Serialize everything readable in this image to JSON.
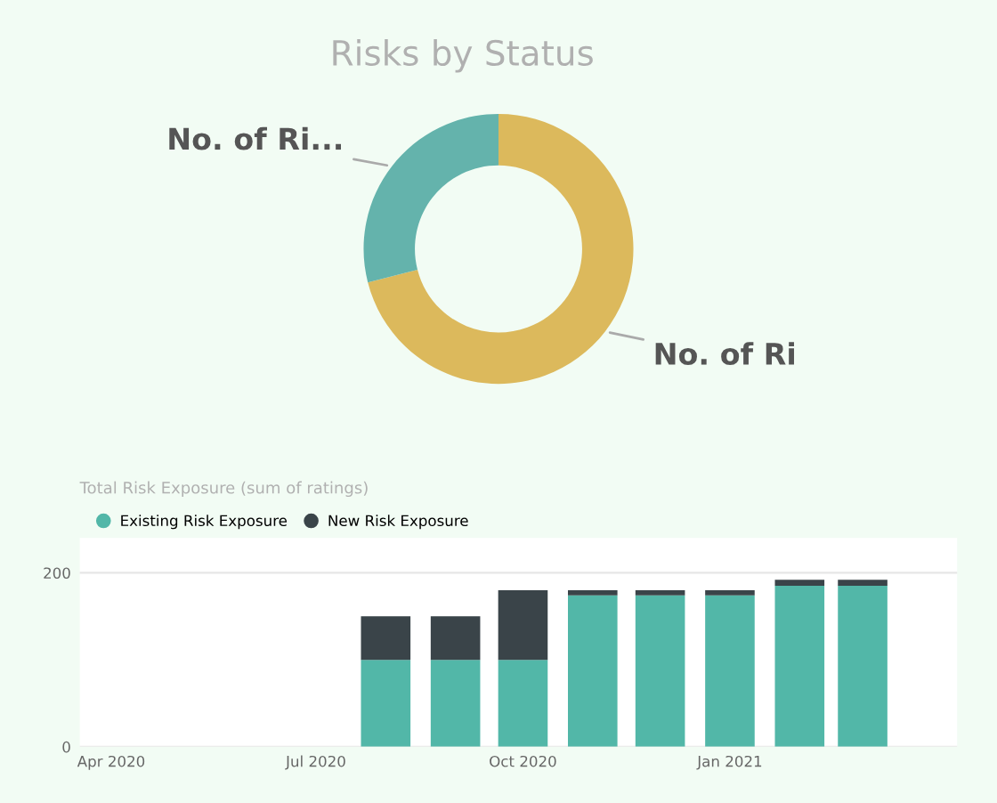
{
  "chart_data": [
    {
      "type": "donut",
      "title": "Risks by Status",
      "categories": [
        "No. of Ri",
        "No. of Ri..."
      ],
      "values": [
        71,
        29
      ],
      "colors": [
        "#dcb95c",
        "#64b3ac"
      ]
    },
    {
      "type": "bar",
      "title": "Total Risk Exposure (sum of ratings)",
      "stacked": true,
      "x": [
        "2020-08-01",
        "2020-09-01",
        "2020-10-01",
        "2020-11-01",
        "2020-12-01",
        "2021-01-01",
        "2021-02-01",
        "2021-03-01"
      ],
      "series": [
        {
          "name": "Existing Risk Exposure",
          "color": "#52b7a8",
          "values": [
            100,
            100,
            100,
            174,
            174,
            174,
            185,
            185
          ]
        },
        {
          "name": "New Risk Exposure",
          "color": "#3a4449",
          "values": [
            50,
            50,
            80,
            6,
            6,
            6,
            7,
            7
          ]
        }
      ],
      "xlim": [
        "2020-03-18",
        "2021-04-12"
      ],
      "xticks": [
        {
          "value": "2020-04-01",
          "label": "Apr 2020"
        },
        {
          "value": "2020-07-01",
          "label": "Jul 2020"
        },
        {
          "value": "2020-10-01",
          "label": "Oct 2020"
        },
        {
          "value": "2021-01-01",
          "label": "Jan 2021"
        }
      ],
      "ylim": [
        0,
        240
      ],
      "yticks": [
        0,
        200
      ],
      "grid": "y",
      "legend": "top left"
    }
  ]
}
